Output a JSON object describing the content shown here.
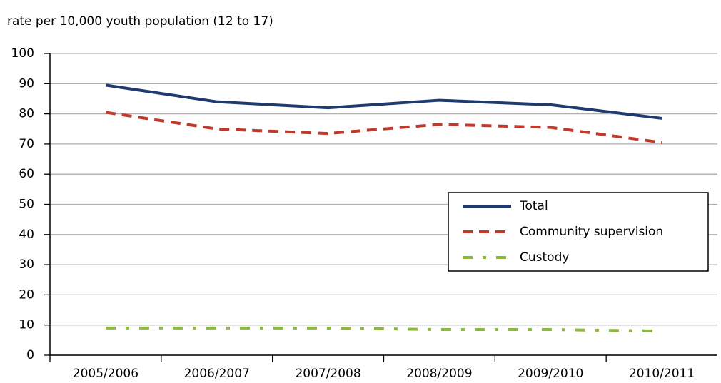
{
  "chart_data": {
    "type": "line",
    "y_label": "rate per 10,000 youth population (12 to 17)",
    "categories": [
      "2005/2006",
      "2006/2007",
      "2007/2008",
      "2008/2009",
      "2009/2010",
      "2010/2011"
    ],
    "series": [
      {
        "name": "Total",
        "color": "#1f3a6e",
        "style": "solid",
        "values": [
          89.5,
          84,
          82,
          84.5,
          83,
          78.5
        ]
      },
      {
        "name": "Community supervision",
        "color": "#c0392b",
        "style": "dashed",
        "values": [
          80.5,
          75,
          73.5,
          76.5,
          75.5,
          70.5
        ]
      },
      {
        "name": "Custody",
        "color": "#8db83e",
        "style": "dashdot",
        "values": [
          9,
          9,
          9,
          8.5,
          8.5,
          8
        ]
      }
    ],
    "ylim": [
      0,
      100
    ],
    "yticks": [
      0,
      10,
      20,
      30,
      40,
      50,
      60,
      70,
      80,
      90,
      100
    ],
    "grid": true,
    "legend_position": "right"
  }
}
